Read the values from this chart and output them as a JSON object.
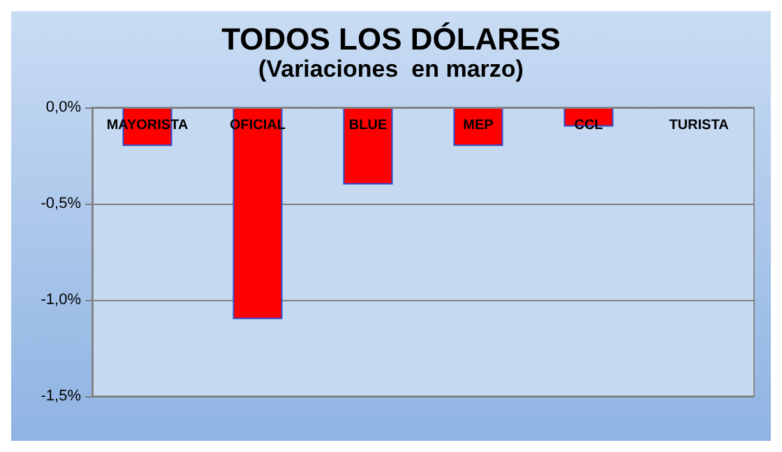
{
  "chart_data": {
    "type": "bar",
    "title": "TODOS LOS DÓLARES",
    "subtitle": "(Variaciones  en marzo)",
    "categories": [
      "MAYORISTA",
      "OFICIAL",
      "BLUE",
      "MEP",
      "CCL",
      "TURISTA"
    ],
    "values": [
      -0.2,
      -1.1,
      -0.4,
      -0.2,
      -0.1,
      0
    ],
    "color": "#ff0000",
    "ylim": [
      -1.5,
      0
    ],
    "yticks": [
      {
        "value": 0,
        "label": "0,0%"
      },
      {
        "value": -0.5,
        "label": "-0,5%"
      },
      {
        "value": -1,
        "label": "-1,0%"
      },
      {
        "value": -1.5,
        "label": "-1,5%"
      }
    ],
    "grid": true
  }
}
